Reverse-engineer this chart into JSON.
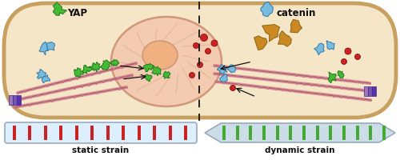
{
  "cell_fill": "#f5e6c8",
  "cell_border_color": "#c8a060",
  "nucleus_fill": "#f2cbb0",
  "nucleus_border": "#d09878",
  "nucleolus_fill": "#f0b080",
  "chromatin_color": "#d09878",
  "dashed_color": "#222222",
  "yap_label": "YAP",
  "catenin_label": "catenin",
  "static_label": "static strain",
  "dynamic_label": "dynamic strain",
  "green_color": "#44bb33",
  "blue_color": "#77bbdd",
  "red_color": "#cc2222",
  "gold_color": "#cc8822",
  "actin_pink": "#cc7788",
  "actin_dark": "#aa5566",
  "focal_colors": [
    "#9977bb",
    "#7755aa",
    "#5533aa"
  ],
  "focal_border": "#442299",
  "arrow_color": "#111111",
  "static_box_fill": "#ddeeff",
  "static_box_border": "#99aabb",
  "static_stripe": "#cc2222",
  "dynamic_arrow_fill": "#ccdde8",
  "dynamic_arrow_border": "#99aabb",
  "dynamic_stripe": "#44aa33",
  "label_color": "#111111",
  "white": "#ffffff"
}
